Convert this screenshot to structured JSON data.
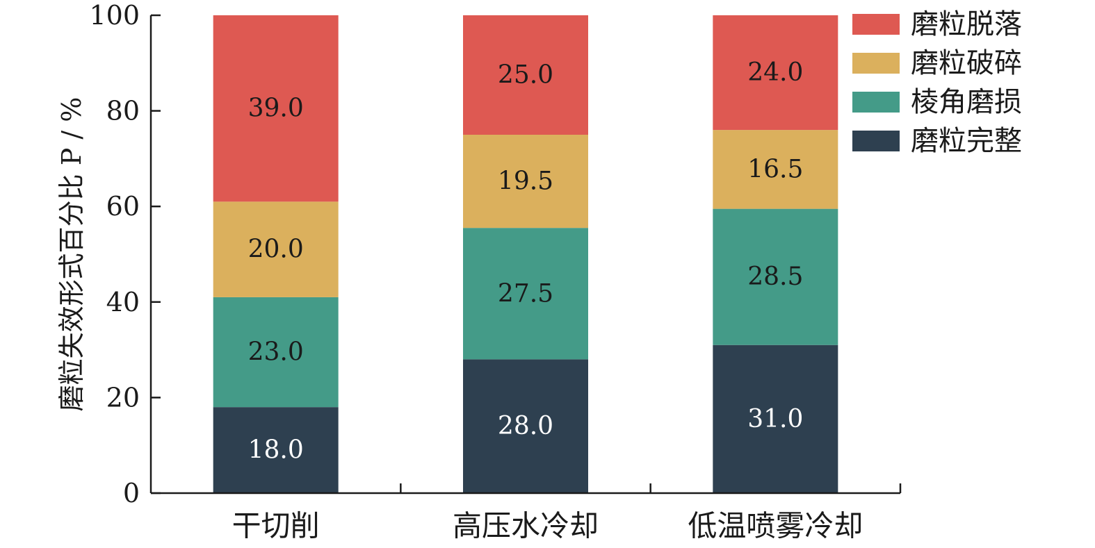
{
  "chart_data": {
    "type": "bar",
    "stacked": true,
    "categories": [
      "干切削",
      "高压水冷却",
      "低温喷雾冷却"
    ],
    "series": [
      {
        "name": "磨粒完整",
        "values": [
          18.0,
          28.0,
          31.0
        ],
        "color": "#2e4050",
        "label_color": "#ffffff"
      },
      {
        "name": "棱角磨损",
        "values": [
          23.0,
          27.5,
          28.5
        ],
        "color": "#449b88",
        "label_color": "#1a1a1a"
      },
      {
        "name": "磨粒破碎",
        "values": [
          20.0,
          19.5,
          16.5
        ],
        "color": "#dbb05d",
        "label_color": "#1a1a1a"
      },
      {
        "name": "磨粒脱落",
        "values": [
          39.0,
          25.0,
          24.0
        ],
        "color": "#de5952",
        "label_color": "#1a1a1a"
      }
    ],
    "data_labels": [
      [
        "18.0",
        "28.0",
        "31.0"
      ],
      [
        "23.0",
        "27.5",
        "28.5"
      ],
      [
        "20.0",
        "19.5",
        "16.5"
      ],
      [
        "39.0",
        "25.0",
        "24.0"
      ]
    ],
    "ylabel": "磨粒失效形式百分比 P / %",
    "ylim": [
      0,
      100
    ],
    "yticks": [
      "0",
      "20",
      "40",
      "60",
      "80",
      "100"
    ],
    "legend_order": [
      "磨粒脱落",
      "磨粒破碎",
      "棱角磨损",
      "磨粒完整"
    ],
    "legend_position": "top-right",
    "grid": false
  }
}
